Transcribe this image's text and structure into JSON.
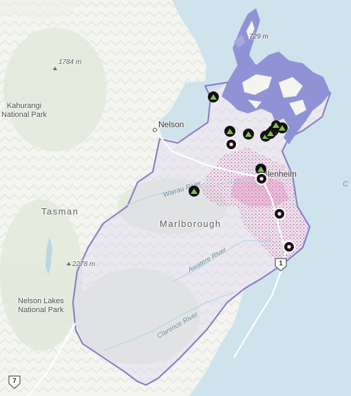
{
  "map": {
    "regions": {
      "tasman": "Tasman",
      "marlborough": "Marlborough"
    },
    "parks": {
      "kahurangi": [
        "Kahurangi",
        "National Park"
      ],
      "nelson_lakes": [
        "Nelson Lakes",
        "National Park"
      ]
    },
    "cities": {
      "nelson": "Nelson",
      "blenheim": "Blenheim"
    },
    "elevations": {
      "peak_1784": "1784 m",
      "peak_2278": "2278 m",
      "peak_729": "729 m"
    },
    "rivers": {
      "wairau": "Wairau River",
      "awatere": "Awatere River",
      "clarence": "Clarence River"
    },
    "water_label_fragment": "C",
    "road_shields": {
      "sh1": "1",
      "sh7": "7"
    },
    "colors": {
      "sea": "#cfe3ec",
      "land": "#f4f4f0",
      "terrain_shade": "#dfe7da",
      "boundary": "#8a7fc6",
      "boundary_fill": "#d9d1f0",
      "sounds_fill": "#8f93d6",
      "density_dots": "#cc3d8f",
      "campsite_marker": "#111111",
      "campsite_icon": "#7dc04a"
    },
    "markers": {
      "campsites": 10,
      "points_of_interest": 4
    }
  }
}
